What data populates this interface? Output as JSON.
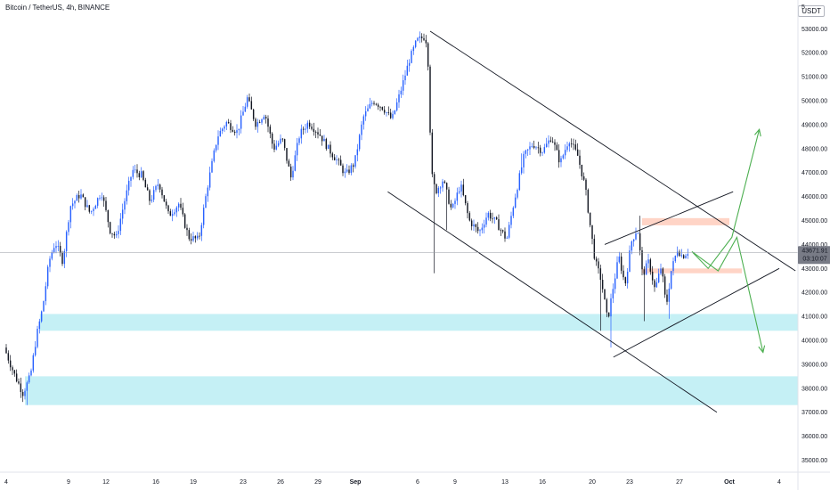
{
  "header": {
    "title": "Bitcoin / TetherUS, 4h, BINANCE",
    "unit": "USDT",
    "top_right_fragment": "5"
  },
  "colors": {
    "bull": "#2962ff",
    "bear": "#131722",
    "zone": "#b2ebf2",
    "resistance": "#ffccbc",
    "arrow": "#4caf50",
    "trendline": "#131722",
    "price_badge": "#787b86"
  },
  "price_badge": {
    "price": "43671.91",
    "countdown": "03:10:07"
  },
  "chart_data": {
    "type": "candlestick",
    "title": "Bitcoin / TetherUS, 4h, BINANCE",
    "y_unit": "USDT",
    "ylim": [
      34500,
      54200
    ],
    "y_ticks": [
      "53000.00",
      "52000.00",
      "51000.00",
      "50000.00",
      "49000.00",
      "48000.00",
      "47000.00",
      "46000.00",
      "45000.00",
      "44000.00",
      "43000.00",
      "42000.00",
      "41000.00",
      "40000.00",
      "39000.00",
      "38000.00",
      "37000.00",
      "36000.00",
      "35000.00"
    ],
    "x_ticks": [
      "4",
      "9",
      "12",
      "16",
      "19",
      "23",
      "26",
      "29",
      "Sep",
      "6",
      "9",
      "13",
      "16",
      "20",
      "23",
      "27",
      "Oct",
      "4"
    ],
    "x_tick_index": [
      0,
      5,
      8,
      12,
      15,
      19,
      22,
      25,
      28,
      33,
      36,
      40,
      43,
      47,
      50,
      54,
      58,
      62
    ],
    "x_range_days": [
      -0.5,
      63.5
    ],
    "candles_per_day": 6,
    "anchors": [
      [
        0.0,
        39700
      ],
      [
        0.8,
        38600
      ],
      [
        1.5,
        37800
      ],
      [
        2.1,
        38500
      ],
      [
        2.6,
        40200
      ],
      [
        3.1,
        41400
      ],
      [
        3.6,
        43300
      ],
      [
        4.1,
        44100
      ],
      [
        4.7,
        43300
      ],
      [
        5.3,
        45600
      ],
      [
        6.1,
        46100
      ],
      [
        6.9,
        45300
      ],
      [
        7.8,
        46200
      ],
      [
        8.5,
        44600
      ],
      [
        9.0,
        44300
      ],
      [
        9.6,
        45700
      ],
      [
        10.3,
        47100
      ],
      [
        11.0,
        46900
      ],
      [
        11.7,
        45800
      ],
      [
        12.4,
        46600
      ],
      [
        13.2,
        45200
      ],
      [
        14.0,
        45700
      ],
      [
        14.8,
        44300
      ],
      [
        15.6,
        44200
      ],
      [
        16.3,
        46400
      ],
      [
        17.1,
        48500
      ],
      [
        17.8,
        49100
      ],
      [
        18.7,
        48700
      ],
      [
        19.5,
        50100
      ],
      [
        20.2,
        49000
      ],
      [
        20.9,
        49500
      ],
      [
        21.6,
        48000
      ],
      [
        22.3,
        48400
      ],
      [
        23.0,
        46800
      ],
      [
        23.7,
        48600
      ],
      [
        24.4,
        49100
      ],
      [
        25.3,
        48600
      ],
      [
        26.0,
        48000
      ],
      [
        26.7,
        47500
      ],
      [
        27.4,
        46900
      ],
      [
        28.1,
        47400
      ],
      [
        28.8,
        49300
      ],
      [
        29.6,
        50000
      ],
      [
        30.4,
        49700
      ],
      [
        31.1,
        49200
      ],
      [
        31.8,
        50400
      ],
      [
        32.5,
        51700
      ],
      [
        33.1,
        52500
      ],
      [
        33.8,
        52700
      ],
      [
        34.05,
        51300
      ],
      [
        34.25,
        47000
      ],
      [
        34.6,
        46200
      ],
      [
        35.2,
        46700
      ],
      [
        35.9,
        45400
      ],
      [
        36.6,
        46500
      ],
      [
        37.3,
        45000
      ],
      [
        38.1,
        44500
      ],
      [
        38.8,
        45300
      ],
      [
        39.5,
        44900
      ],
      [
        40.3,
        44200
      ],
      [
        40.9,
        45800
      ],
      [
        41.7,
        47700
      ],
      [
        42.4,
        48200
      ],
      [
        43.2,
        47900
      ],
      [
        43.9,
        48500
      ],
      [
        44.6,
        47400
      ],
      [
        45.3,
        48400
      ],
      [
        46.0,
        47700
      ],
      [
        46.6,
        46400
      ],
      [
        47.0,
        44800
      ],
      [
        47.4,
        43300
      ],
      [
        47.9,
        42500
      ],
      [
        48.4,
        40800
      ],
      [
        48.8,
        42100
      ],
      [
        49.3,
        43500
      ],
      [
        49.8,
        42300
      ],
      [
        50.3,
        44100
      ],
      [
        50.8,
        44700
      ],
      [
        51.2,
        42700
      ],
      [
        51.7,
        43300
      ],
      [
        52.2,
        42100
      ],
      [
        52.7,
        43100
      ],
      [
        53.1,
        41400
      ],
      [
        53.5,
        42900
      ],
      [
        54.0,
        43800
      ],
      [
        54.4,
        43500
      ],
      [
        54.8,
        43700
      ]
    ],
    "wicks": [
      {
        "day": 1.6,
        "low": 37300
      },
      {
        "day": 34.3,
        "low": 42800
      },
      {
        "day": 35.3,
        "low": 44600
      },
      {
        "day": 41.3,
        "high": 47800
      },
      {
        "day": 47.6,
        "low": 40400
      },
      {
        "day": 48.5,
        "low": 39700
      },
      {
        "day": 50.9,
        "high": 45200
      },
      {
        "day": 51.2,
        "low": 40800
      },
      {
        "day": 53.1,
        "low": 40900
      }
    ],
    "zones": [
      {
        "kind": "support",
        "y1": 40400,
        "y2": 41100,
        "x1": 2.7,
        "x2": 63.5
      },
      {
        "kind": "support",
        "y1": 37300,
        "y2": 38500,
        "x1": 1.5,
        "x2": 63.5
      },
      {
        "kind": "resistance",
        "y1": 44800,
        "y2": 45100,
        "x1": 51.0,
        "x2": 58.0
      },
      {
        "kind": "resistance",
        "y1": 42800,
        "y2": 43000,
        "x1": 51.0,
        "x2": 59.0
      }
    ],
    "trendlines": [
      {
        "x1": 34.0,
        "y1": 52900,
        "x2": 63.3,
        "y2": 42900
      },
      {
        "x1": 30.6,
        "y1": 46200,
        "x2": 57.0,
        "y2": 37000
      },
      {
        "x1": 48.0,
        "y1": 44000,
        "x2": 58.3,
        "y2": 46200
      },
      {
        "x1": 48.7,
        "y1": 39300,
        "x2": 62.0,
        "y2": 43000
      }
    ],
    "arrows": [
      {
        "points": [
          [
            55.0,
            43700
          ],
          [
            56.3,
            43000
          ],
          [
            58.2,
            44300
          ],
          [
            60.4,
            48800
          ]
        ]
      },
      {
        "points": [
          [
            55.0,
            43700
          ],
          [
            57.1,
            42900
          ],
          [
            58.6,
            44300
          ],
          [
            60.7,
            39500
          ]
        ]
      }
    ],
    "last_price": 43671.91
  }
}
